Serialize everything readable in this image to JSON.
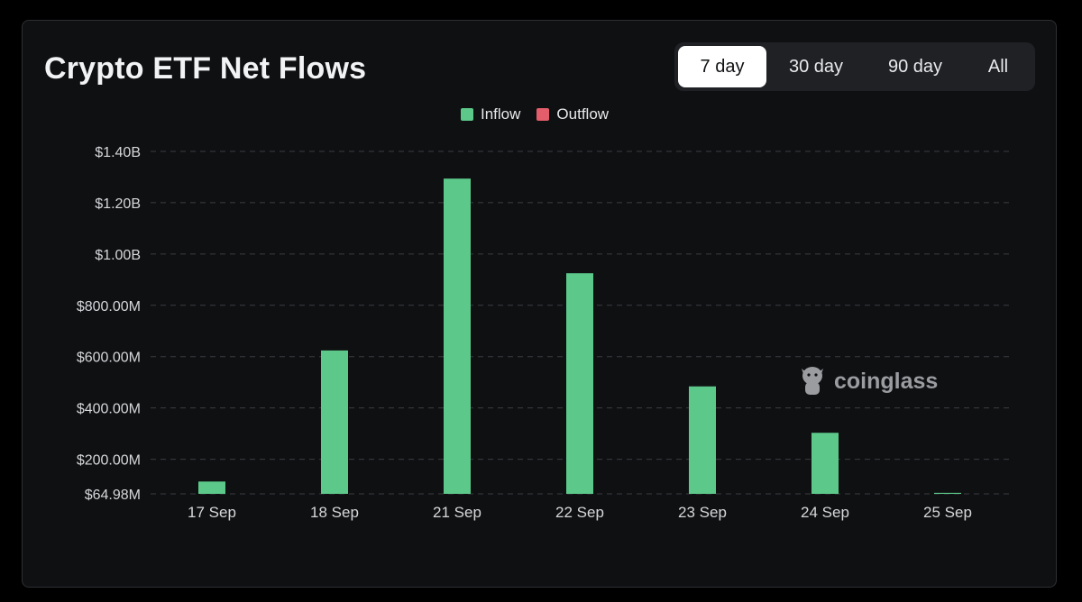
{
  "title": "Crypto ETF Net Flows",
  "ranges": [
    "7 day",
    "30 day",
    "90 day",
    "All"
  ],
  "active_range": "7 day",
  "legend": {
    "inflow": "Inflow",
    "outflow": "Outflow"
  },
  "colors": {
    "inflow": "#5cc98a",
    "outflow": "#e35d6a",
    "background": "#0f1012",
    "grid": "#3a3c40"
  },
  "watermark": "coinglass",
  "chart_data": {
    "type": "bar",
    "title": "Crypto ETF Net Flows",
    "categories": [
      "17 Sep",
      "18 Sep",
      "21 Sep",
      "22 Sep",
      "23 Sep",
      "24 Sep",
      "25 Sep"
    ],
    "series": [
      {
        "name": "Inflow",
        "values": [
          113000000,
          624000000,
          1294000000,
          925000000,
          484000000,
          303000000,
          69000000
        ]
      },
      {
        "name": "Outflow",
        "values": [
          0,
          0,
          0,
          0,
          0,
          0,
          0
        ]
      }
    ],
    "yticks": [
      64980000,
      200000000,
      400000000,
      600000000,
      800000000,
      1000000000,
      1200000000,
      1400000000
    ],
    "ytick_labels": [
      "$64.98M",
      "$200.00M",
      "$400.00M",
      "$600.00M",
      "$800.00M",
      "$1.00B",
      "$1.20B",
      "$1.40B"
    ],
    "ylim": [
      64980000,
      1400000000
    ],
    "grid": true,
    "legend_position": "top-center"
  }
}
